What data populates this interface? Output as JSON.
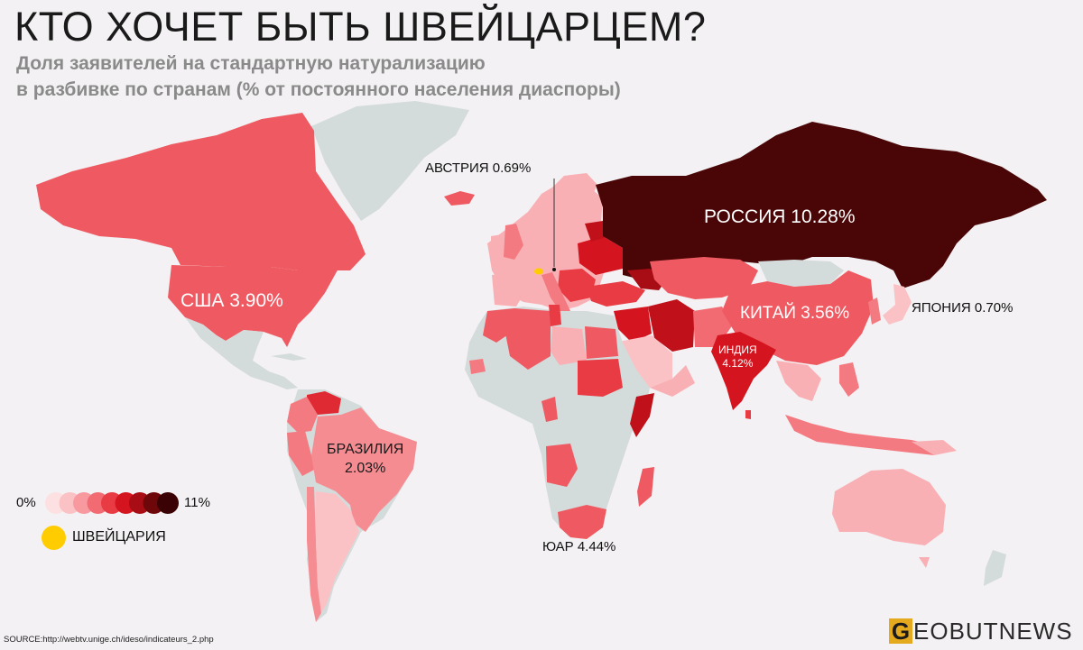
{
  "title": "КТО ХОЧЕТ БЫТЬ ШВЕЙЦАРЦЕМ?",
  "subtitle": {
    "line1": "Доля заявителей на стандартную натурализацию",
    "line2": "в разбивке по странам (% от постоянного населения диаспоры)"
  },
  "labels": {
    "austria": "АВСТРИЯ 0.69%",
    "russia": "РОССИЯ 10.28%",
    "usa": "США 3.90%",
    "china": "КИТАЙ 3.56%",
    "japan": "ЯПОНИЯ 0.70%",
    "india_name": "ИНДИЯ",
    "india_value": "4.12%",
    "brazil_name": "БРАЗИЛИЯ",
    "brazil_value": "2.03%",
    "south_africa": "ЮАР 4.44%"
  },
  "legend": {
    "min": "0%",
    "max": "11%",
    "steps": [
      "#fde0e2",
      "#fbc2c6",
      "#f7999f",
      "#f26b73",
      "#e83b44",
      "#d4141e",
      "#a80d15",
      "#6e0709",
      "#3a0204"
    ],
    "switzerland": "ШВЕЙЦАРИЯ",
    "switzerland_color": "#ffcc00"
  },
  "colors": {
    "no_data": "#d4dbdb",
    "background": "#f3f1f3",
    "russia": "#4a0606",
    "brand_accent": "#e5a91e"
  },
  "source": "SOURCE:http://webtv.unige.ch/ideso/indicateurs_2.php",
  "brand": {
    "first_letter": "G",
    "rest": "EOBUTNEWS"
  }
}
